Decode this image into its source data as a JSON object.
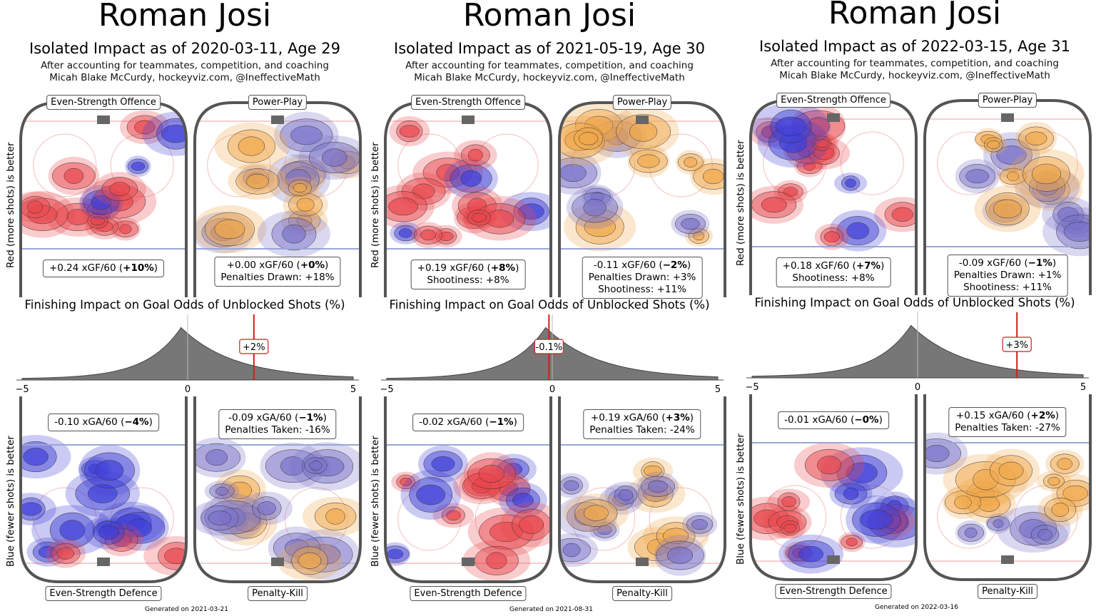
{
  "chart_data": [
    {
      "type": "heatmap",
      "title": "Roman Josi",
      "subtitle": "Isolated Impact as of 2020-03-11, Age 29",
      "credit_line1": "After accounting for teammates, competition, and coaching",
      "credit_line2": "Micah Blake McCurdy, hockeyviz.com, @IneffectiveMath",
      "ylabel_top": "Red (more shots) is better",
      "ylabel_bottom": "Blue (fewer shots) is better",
      "rinks": {
        "es_offence": {
          "label": "Even-Strength Offence",
          "stat_main": "+0.24 xGF/60 (",
          "stat_bold": "+10%",
          "stat_end": ")",
          "extra": []
        },
        "power_play": {
          "label": "Power-Play",
          "stat_main": "+0.00 xGF/60 (",
          "stat_bold": "+0%",
          "stat_end": ")",
          "extra": [
            "Penalties Drawn: +18%"
          ]
        },
        "es_defence": {
          "label": "Even-Strength Defence",
          "stat_main": "-0.10 xGA/60 (",
          "stat_bold": "−4%",
          "stat_end": ")",
          "extra": []
        },
        "penalty_kill": {
          "label": "Penalty-Kill",
          "stat_main": "-0.09 xGA/60 (",
          "stat_bold": "−1%",
          "stat_end": ")",
          "extra": [
            "Penalties Taken: -16%"
          ]
        }
      },
      "finishing": {
        "title": "Finishing Impact on Goal Odds of Unblocked Shots (%)",
        "xlim": [
          -5,
          5
        ],
        "ticks": [
          "−5",
          "0",
          "5"
        ],
        "player_value": 2,
        "player_label": "+2%",
        "density_mode": -0.2
      },
      "generated": "Generated on 2021-03-21"
    },
    {
      "type": "heatmap",
      "title": "Roman Josi",
      "subtitle": "Isolated Impact as of 2021-05-19, Age 30",
      "credit_line1": "After accounting for teammates, competition, and coaching",
      "credit_line2": "Micah Blake McCurdy, hockeyviz.com, @IneffectiveMath",
      "ylabel_top": "Red (more shots) is better",
      "ylabel_bottom": "Blue (fewer shots) is better",
      "rinks": {
        "es_offence": {
          "label": "Even-Strength Offence",
          "stat_main": "+0.19 xGF/60 (",
          "stat_bold": "+8%",
          "stat_end": ")",
          "extra": [
            "Shootiness: +8%"
          ]
        },
        "power_play": {
          "label": "Power-Play",
          "stat_main": "-0.11 xGF/60 (",
          "stat_bold": "−2%",
          "stat_end": ")",
          "extra": [
            "Penalties Drawn: +3%",
            "Shootiness: +11%"
          ]
        },
        "es_defence": {
          "label": "Even-Strength Defence",
          "stat_main": "-0.02 xGA/60 (",
          "stat_bold": "−1%",
          "stat_end": ")",
          "extra": []
        },
        "penalty_kill": {
          "label": "Penalty-Kill",
          "stat_main": "+0.19 xGA/60 (",
          "stat_bold": "+3%",
          "stat_end": ")",
          "extra": [
            "Penalties Taken: -24%"
          ]
        }
      },
      "finishing": {
        "title": "Finishing Impact on Goal Odds of Unblocked Shots (%)",
        "xlim": [
          -5,
          5
        ],
        "ticks": [
          "−5",
          "0",
          "5"
        ],
        "player_value": -0.1,
        "player_label": "-0.1%",
        "density_mode": -0.2
      },
      "generated": "Generated on 2021-08-31"
    },
    {
      "type": "heatmap",
      "title": "Roman Josi",
      "subtitle": "Isolated Impact as of 2022-03-15, Age 31",
      "credit_line1": "After accounting for teammates, competition, and coaching",
      "credit_line2": "Micah Blake McCurdy, hockeyviz.com, @IneffectiveMath",
      "ylabel_top": "Red (more shots) is better",
      "ylabel_bottom": "Blue (fewer shots) is better",
      "rinks": {
        "es_offence": {
          "label": "Even-Strength Offence",
          "stat_main": "+0.18 xGF/60 (",
          "stat_bold": "+7%",
          "stat_end": ")",
          "extra": [
            "Shootiness: +8%"
          ]
        },
        "power_play": {
          "label": "Power-Play",
          "stat_main": "-0.09 xGF/60 (",
          "stat_bold": "−1%",
          "stat_end": ")",
          "extra": [
            "Penalties Drawn: +1%",
            "Shootiness: +11%"
          ]
        },
        "es_defence": {
          "label": "Even-Strength Defence",
          "stat_main": "-0.01 xGA/60 (",
          "stat_bold": "−0%",
          "stat_end": ")",
          "extra": []
        },
        "penalty_kill": {
          "label": "Penalty-Kill",
          "stat_main": "+0.15 xGA/60 (",
          "stat_bold": "+2%",
          "stat_end": ")",
          "extra": [
            "Penalties Taken: -27%"
          ]
        }
      },
      "finishing": {
        "title": "Finishing Impact on Goal Odds of Unblocked Shots (%)",
        "xlim": [
          -5,
          5
        ],
        "ticks": [
          "−5",
          "0",
          "5"
        ],
        "player_value": 3,
        "player_label": "+3%",
        "density_mode": -0.2
      },
      "generated": "Generated on 2022-03-16"
    }
  ],
  "colors": {
    "red": "#e8474d",
    "blue": "#3f3fd8",
    "orange": "#f0a84a",
    "purple": "#7a72c8",
    "density": "#777777",
    "marker": "#d81b1b"
  }
}
